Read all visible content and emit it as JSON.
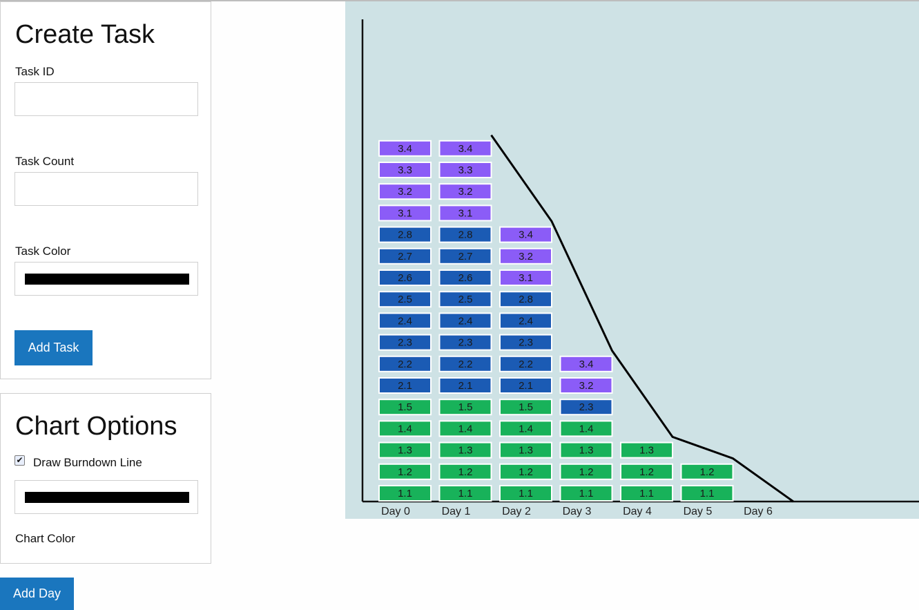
{
  "create_task": {
    "title": "Create Task",
    "task_id_label": "Task ID",
    "task_id_value": "",
    "task_count_label": "Task Count",
    "task_count_value": "",
    "task_color_label": "Task Color",
    "task_color_value": "#000000",
    "add_task_label": "Add Task"
  },
  "chart_options": {
    "title": "Chart Options",
    "draw_burndown_label": "Draw Burndown Line",
    "draw_burndown_checked": true,
    "chart_color_value": "#000000",
    "chart_color_label": "Chart Color"
  },
  "add_day_label": "Add Day",
  "colors": {
    "accent": "#1a76be",
    "chart_background": "#cee2e5",
    "task_group_1": "#18b25a",
    "task_group_2": "#1b5bb4",
    "task_group_3": "#8b5cf7"
  },
  "chart_data": {
    "type": "bar",
    "title": "",
    "xlabel": "",
    "ylabel": "",
    "categories": [
      "Day 0",
      "Day 1",
      "Day 2",
      "Day 3",
      "Day 4",
      "Day 5",
      "Day 6"
    ],
    "days": [
      {
        "tasks": [
          "1.1",
          "1.2",
          "1.3",
          "1.4",
          "1.5",
          "2.1",
          "2.2",
          "2.3",
          "2.4",
          "2.5",
          "2.6",
          "2.7",
          "2.8",
          "3.1",
          "3.2",
          "3.3",
          "3.4"
        ]
      },
      {
        "tasks": [
          "1.1",
          "1.2",
          "1.3",
          "1.4",
          "1.5",
          "2.1",
          "2.2",
          "2.3",
          "2.4",
          "2.5",
          "2.6",
          "2.7",
          "2.8",
          "3.1",
          "3.2",
          "3.3",
          "3.4"
        ]
      },
      {
        "tasks": [
          "1.1",
          "1.2",
          "1.3",
          "1.4",
          "1.5",
          "2.1",
          "2.2",
          "2.3",
          "2.4",
          "2.8",
          "3.1",
          "3.2",
          "3.4"
        ]
      },
      {
        "tasks": [
          "1.1",
          "1.2",
          "1.3",
          "1.4",
          "2.3",
          "3.2",
          "3.4"
        ]
      },
      {
        "tasks": [
          "1.1",
          "1.2",
          "1.3"
        ]
      },
      {
        "tasks": [
          "1.1",
          "1.2"
        ]
      },
      {
        "tasks": []
      }
    ],
    "values": [
      17,
      17,
      13,
      7,
      3,
      2,
      0
    ],
    "burndown_line": true,
    "ylim": [
      0,
      22
    ]
  }
}
